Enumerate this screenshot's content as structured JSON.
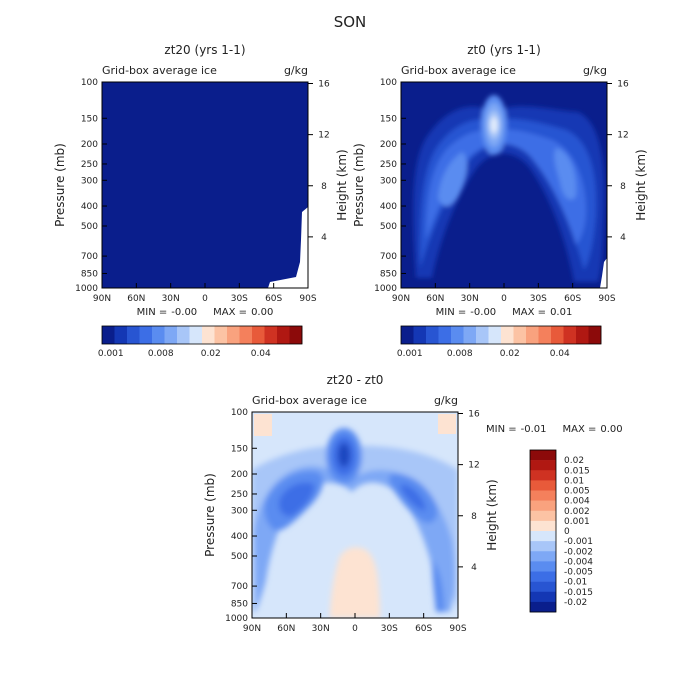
{
  "figure_title": "SON",
  "chart_data": [
    {
      "type": "heatmap",
      "title": "zt20 (yrs 1-1)",
      "subtitle_left": "Grid-box average ice",
      "subtitle_right": "g/kg",
      "xlabel": "",
      "ylabel": "Pressure (mb)",
      "ylabel_right": "Height (km)",
      "x_ticks": [
        "90N",
        "60N",
        "30N",
        "0",
        "30S",
        "60S",
        "90S"
      ],
      "y_ticks": [
        100,
        150,
        200,
        250,
        300,
        400,
        500,
        700,
        850,
        1000
      ],
      "y_right_ticks": [
        16,
        12,
        8,
        4
      ],
      "stats": {
        "min_label": "MIN =",
        "min": "-0.00",
        "max_label": "MAX =",
        "max": "0.00"
      },
      "colorbar": {
        "orientation": "horizontal",
        "labels": [
          "0.001",
          "0.008",
          "0.02",
          "0.04"
        ],
        "colors": [
          "#0a1e8c",
          "#1437b4",
          "#2855d2",
          "#3c6ee6",
          "#5a8cf0",
          "#7ea8f5",
          "#a8c6f8",
          "#d6e6fb",
          "#fde3d2",
          "#fcc3a4",
          "#f9a27e",
          "#f4805c",
          "#e85a3a",
          "#cf3222",
          "#b01812",
          "#8c0a0a"
        ]
      }
    },
    {
      "type": "heatmap",
      "title": "zt0 (yrs 1-1)",
      "subtitle_left": "Grid-box average ice",
      "subtitle_right": "g/kg",
      "xlabel": "",
      "ylabel": "Pressure (mb)",
      "ylabel_right": "Height (km)",
      "x_ticks": [
        "90N",
        "60N",
        "30N",
        "0",
        "30S",
        "60S",
        "90S"
      ],
      "y_ticks": [
        100,
        150,
        200,
        250,
        300,
        400,
        500,
        700,
        850,
        1000
      ],
      "y_right_ticks": [
        16,
        12,
        8,
        4
      ],
      "stats": {
        "min_label": "MIN =",
        "min": "-0.00",
        "max_label": "MAX =",
        "max": "0.01"
      },
      "colorbar": {
        "orientation": "horizontal",
        "labels": [
          "0.001",
          "0.008",
          "0.02",
          "0.04"
        ],
        "colors": [
          "#0a1e8c",
          "#1437b4",
          "#2855d2",
          "#3c6ee6",
          "#5a8cf0",
          "#7ea8f5",
          "#a8c6f8",
          "#d6e6fb",
          "#fde3d2",
          "#fcc3a4",
          "#f9a27e",
          "#f4805c",
          "#e85a3a",
          "#cf3222",
          "#b01812",
          "#8c0a0a"
        ]
      }
    },
    {
      "type": "heatmap",
      "title": "zt20 - zt0",
      "subtitle_left": "Grid-box average ice",
      "subtitle_right": "g/kg",
      "xlabel": "",
      "ylabel": "Pressure (mb)",
      "ylabel_right": "Height (km)",
      "x_ticks": [
        "90N",
        "60N",
        "30N",
        "0",
        "30S",
        "60S",
        "90S"
      ],
      "y_ticks": [
        100,
        150,
        200,
        250,
        300,
        400,
        500,
        700,
        850,
        1000
      ],
      "y_right_ticks": [
        16,
        12,
        8,
        4
      ],
      "stats": {
        "min_label": "MIN =",
        "min": "-0.01",
        "max_label": "MAX =",
        "max": "0.00"
      },
      "colorbar": {
        "orientation": "vertical",
        "labels": [
          "0.02",
          "0.015",
          "0.01",
          "0.005",
          "0.004",
          "0.002",
          "0.001",
          "0",
          "-0.001",
          "-0.002",
          "-0.004",
          "-0.005",
          "-0.01",
          "-0.015",
          "-0.02"
        ],
        "colors": [
          "#8c0a0a",
          "#b01812",
          "#cf3222",
          "#e85a3a",
          "#f4805c",
          "#f9a27e",
          "#fcc3a4",
          "#fde3d2",
          "#d6e6fb",
          "#a8c6f8",
          "#7ea8f5",
          "#5a8cf0",
          "#3c6ee6",
          "#2855d2",
          "#1437b4",
          "#0a1e8c"
        ]
      }
    }
  ]
}
